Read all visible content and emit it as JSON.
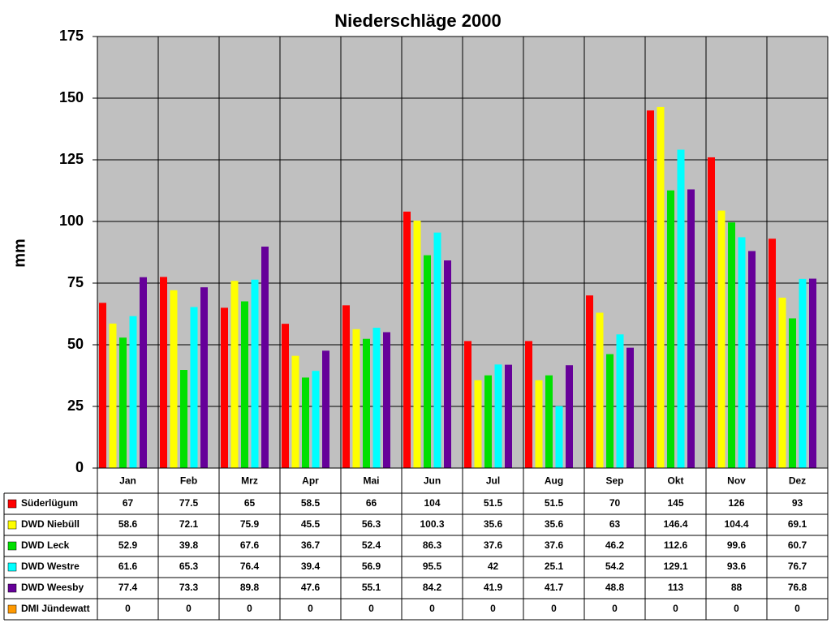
{
  "chart_data": {
    "type": "bar",
    "title": "Niederschläge 2000",
    "y_label": "mm",
    "categories": [
      "Jan",
      "Feb",
      "Mrz",
      "Apr",
      "Mai",
      "Jun",
      "Jul",
      "Aug",
      "Sep",
      "Okt",
      "Nov",
      "Dez"
    ],
    "series": [
      {
        "name": "Süderlügum",
        "color": "#ff0000",
        "values": [
          67,
          77.5,
          65,
          58.5,
          66,
          104,
          51.5,
          51.5,
          70,
          145,
          126,
          93
        ]
      },
      {
        "name": "DWD Niebüll",
        "color": "#ffff00",
        "values": [
          58.6,
          72.1,
          75.9,
          45.5,
          56.3,
          100.3,
          35.6,
          35.6,
          63,
          146.4,
          104.4,
          69.1
        ]
      },
      {
        "name": "DWD Leck",
        "color": "#00e000",
        "values": [
          52.9,
          39.8,
          67.6,
          36.7,
          52.4,
          86.3,
          37.6,
          37.6,
          46.2,
          112.6,
          99.6,
          60.7
        ]
      },
      {
        "name": "DWD Westre",
        "color": "#00ffff",
        "values": [
          61.6,
          65.3,
          76.4,
          39.4,
          56.9,
          95.5,
          42,
          25.1,
          54.2,
          129.1,
          93.6,
          76.7
        ]
      },
      {
        "name": "DWD Weesby",
        "color": "#660099",
        "values": [
          77.4,
          73.3,
          89.8,
          47.6,
          55.1,
          84.2,
          41.9,
          41.7,
          48.8,
          113,
          88,
          76.8
        ]
      },
      {
        "name": "DMI Jündewatt",
        "color": "#ff9900",
        "values": [
          0,
          0,
          0,
          0,
          0,
          0,
          0,
          0,
          0,
          0,
          0,
          0
        ]
      }
    ],
    "ylim": [
      0,
      175
    ],
    "yticks": [
      0,
      25,
      50,
      75,
      100,
      125,
      150,
      175
    ],
    "grid": true,
    "plot_background": "#c0c0c0"
  }
}
